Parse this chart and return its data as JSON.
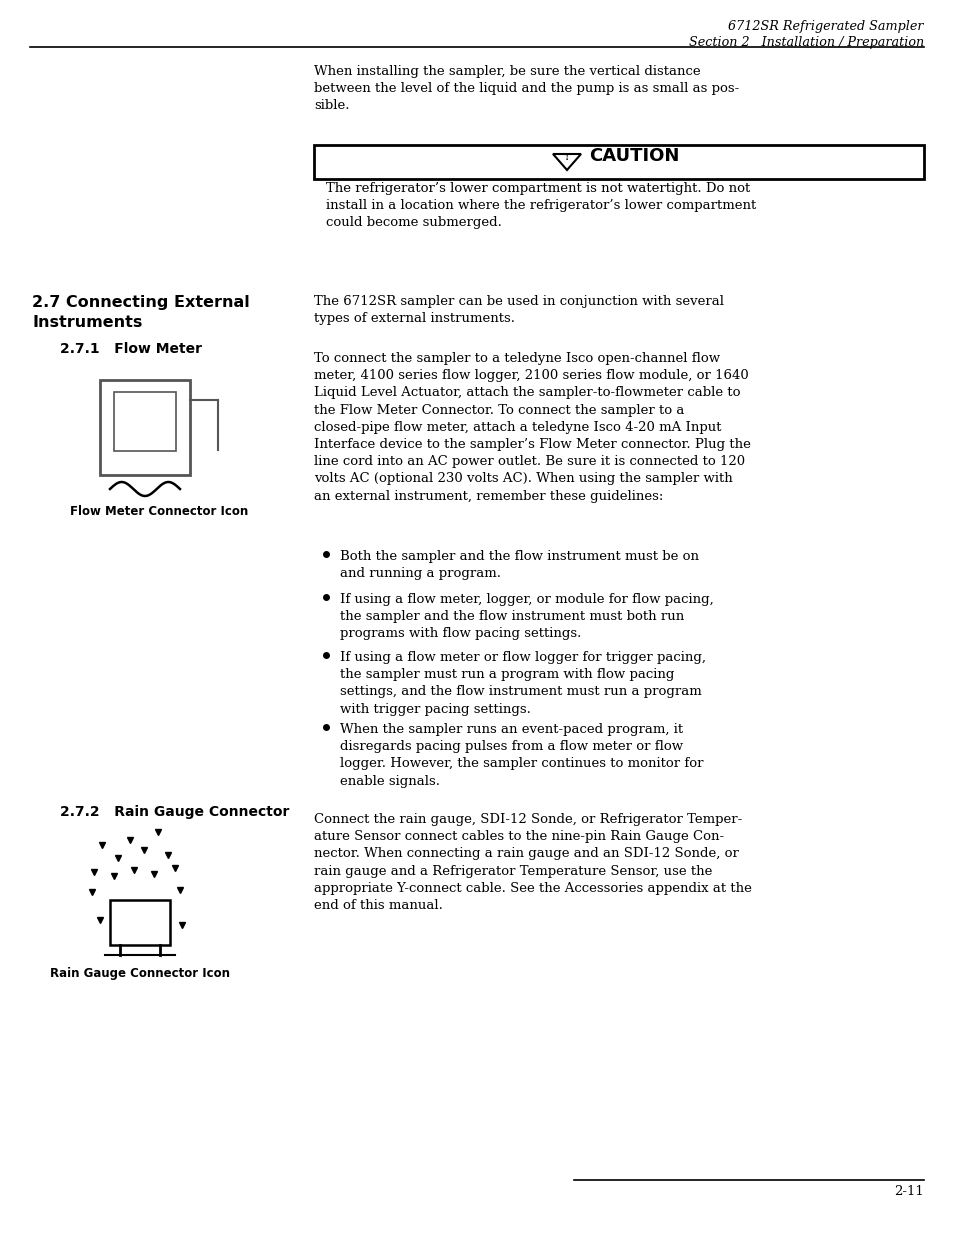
{
  "page_bg": "#ffffff",
  "header_text_line1": "6712SR Refrigerated Sampler",
  "header_text_line2": "Section 2   Installation / Preparation",
  "footer_text": "2-11",
  "intro_text": "When installing the sampler, be sure the vertical distance\nbetween the level of the liquid and the pump is as small as pos-\nsible.",
  "caution_title": "CAUTION",
  "caution_text": "The refrigerator’s lower compartment is not watertight. Do not\ninstall in a location where the refrigerator’s lower compartment\ncould become submerged.",
  "section_title_line1": "2.7 Connecting External",
  "section_title_line2": "Instruments",
  "section_intro": "The 6712SR sampler can be used in conjunction with several\ntypes of external instruments.",
  "subsection1": "2.7.1   Flow Meter",
  "flow_meter_icon_label": "Flow Meter Connector Icon",
  "flow_meter_text": "To connect the sampler to a teledyne Isco open-channel flow\nmeter, 4100 series flow logger, 2100 series flow module, or 1640\nLiquid Level Actuator, attach the sampler-to-flowmeter cable to\nthe Flow Meter Connector. To connect the sampler to a\nclosed-pipe flow meter, attach a teledyne Isco 4-20 mA Input\nInterface device to the sampler’s Flow Meter connector. Plug the\nline cord into an AC power outlet. Be sure it is connected to 120\nvolts AC (optional 230 volts AC). When using the sampler with\nan external instrument, remember these guidelines:",
  "bullet1": "Both the sampler and the flow instrument must be on\nand running a program.",
  "bullet2": "If using a flow meter, logger, or module for flow pacing,\nthe sampler and the flow instrument must both run\nprograms with flow pacing settings.",
  "bullet3": "If using a flow meter or flow logger for trigger pacing,\nthe sampler must run a program with flow pacing\nsettings, and the flow instrument must run a program\nwith trigger pacing settings.",
  "bullet4": "When the sampler runs an event-paced program, it\ndisregards pacing pulses from a flow meter or flow\nlogger. However, the sampler continues to monitor for\nenable signals.",
  "subsection2": "2.7.2   Rain Gauge Connector",
  "rain_gauge_icon_label": "Rain Gauge Connector Icon",
  "rain_gauge_text": "Connect the rain gauge, SDI-12 Sonde, or Refrigerator Temper-\nature Sensor connect cables to the nine-pin Rain Gauge Con-\nnector. When connecting a rain gauge and an SDI-12 Sonde, or\nrain gauge and a Refrigerator Temperature Sensor, use the\nappropriate Y-connect cable. See the Accessories appendix at the\nend of this manual."
}
